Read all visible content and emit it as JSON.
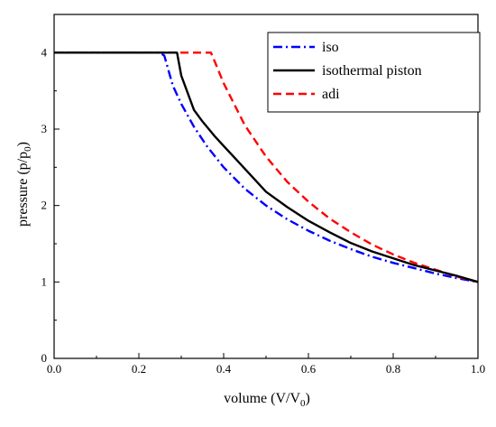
{
  "chart_data": {
    "type": "line",
    "title": "",
    "xlabel": {
      "main": "volume (V/V",
      "sub": "0",
      "close": ")"
    },
    "ylabel": {
      "main": "pressure (p/p",
      "sub": "0",
      "close": ")"
    },
    "xlim": [
      0.0,
      1.0
    ],
    "ylim": [
      0,
      4.5
    ],
    "xticks": [
      0.0,
      0.2,
      0.4,
      0.6,
      0.8,
      1.0
    ],
    "xtick_labels": [
      "0.0",
      "0.2",
      "0.4",
      "0.6",
      "0.8",
      "1.0"
    ],
    "yticks": [
      0,
      1,
      2,
      3,
      4
    ],
    "ytick_labels": [
      "0",
      "1",
      "2",
      "3",
      "4"
    ],
    "grid": false,
    "legend_position": "top-right",
    "series": [
      {
        "name": "iso",
        "color": "#0000ff",
        "dash": "dash-dot",
        "x": [
          0.0,
          0.25,
          0.26,
          0.28,
          0.3,
          0.33,
          0.36,
          0.4,
          0.45,
          0.5,
          0.55,
          0.6,
          0.65,
          0.7,
          0.75,
          0.8,
          0.85,
          0.9,
          0.95,
          1.0
        ],
        "y": [
          4.0,
          4.0,
          3.96,
          3.57,
          3.33,
          3.03,
          2.78,
          2.5,
          2.22,
          2.0,
          1.82,
          1.67,
          1.54,
          1.43,
          1.33,
          1.25,
          1.18,
          1.11,
          1.05,
          1.0
        ]
      },
      {
        "name": "isothermal piston",
        "color": "#000000",
        "dash": "solid",
        "x": [
          0.0,
          0.29,
          0.3,
          0.31,
          0.33,
          0.35,
          0.38,
          0.4,
          0.43,
          0.46,
          0.5,
          0.55,
          0.6,
          0.65,
          0.7,
          0.75,
          0.8,
          0.85,
          0.9,
          0.95,
          1.0
        ],
        "y": [
          4.0,
          4.0,
          3.7,
          3.55,
          3.25,
          3.1,
          2.9,
          2.78,
          2.6,
          2.42,
          2.18,
          1.98,
          1.8,
          1.65,
          1.51,
          1.4,
          1.31,
          1.22,
          1.15,
          1.08,
          1.0
        ]
      },
      {
        "name": "adi",
        "color": "#ff0000",
        "dash": "dashed",
        "x": [
          0.0,
          0.37,
          0.38,
          0.4,
          0.45,
          0.5,
          0.55,
          0.6,
          0.65,
          0.7,
          0.75,
          0.8,
          0.85,
          0.9,
          0.95,
          1.0
        ],
        "y": [
          4.0,
          4.0,
          3.87,
          3.6,
          3.05,
          2.64,
          2.31,
          2.05,
          1.83,
          1.65,
          1.49,
          1.36,
          1.25,
          1.16,
          1.07,
          1.0
        ]
      }
    ]
  }
}
